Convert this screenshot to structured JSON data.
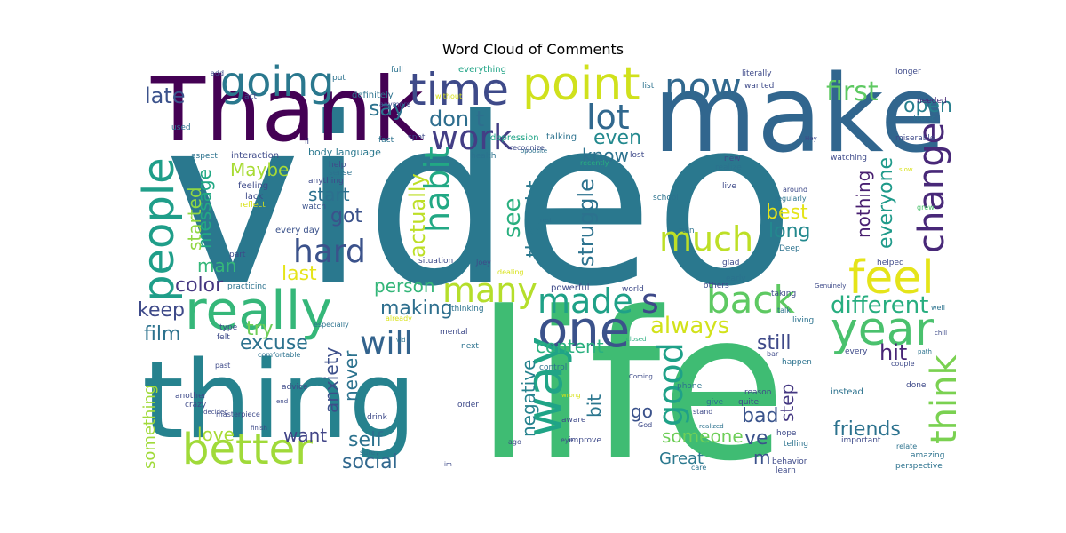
{
  "chart_data": {
    "type": "wordcloud",
    "title": "Word Cloud of Comments",
    "words": [
      {
        "text": "video",
        "weight": 260,
        "color": "#2a788e"
      },
      {
        "text": "life",
        "weight": 230,
        "color": "#3fbc73"
      },
      {
        "text": "make",
        "weight": 120,
        "color": "#31668e"
      },
      {
        "text": "thing",
        "weight": 120,
        "color": "#26828e"
      },
      {
        "text": "Thank",
        "weight": 100,
        "color": "#440154"
      },
      {
        "text": "better",
        "weight": 48,
        "color": "#a0da39"
      },
      {
        "text": "really",
        "weight": 60,
        "color": "#35b779"
      },
      {
        "text": "people",
        "weight": 48,
        "color": "#1f9e89"
      },
      {
        "text": "point",
        "weight": 52,
        "color": "#d0e11c"
      },
      {
        "text": "time",
        "weight": 50,
        "color": "#3e4a89"
      },
      {
        "text": "going",
        "weight": 46,
        "color": "#2a788e"
      },
      {
        "text": "now",
        "weight": 42,
        "color": "#31688e"
      },
      {
        "text": "one",
        "weight": 56,
        "color": "#3b528b"
      },
      {
        "text": "way",
        "weight": 56,
        "color": "#20a486"
      },
      {
        "text": "year",
        "weight": 52,
        "color": "#4ac16d"
      },
      {
        "text": "feel",
        "weight": 52,
        "color": "#e5e419"
      },
      {
        "text": "change",
        "weight": 40,
        "color": "#482878"
      },
      {
        "text": "think",
        "weight": 40,
        "color": "#7ad151"
      },
      {
        "text": "back",
        "weight": 42,
        "color": "#5ec962"
      },
      {
        "text": "made",
        "weight": 38,
        "color": "#1fa187"
      },
      {
        "text": "s",
        "weight": 38,
        "color": "#3e4989"
      },
      {
        "text": "many",
        "weight": 38,
        "color": "#b5de2b"
      },
      {
        "text": "much",
        "weight": 38,
        "color": "#bddf26"
      },
      {
        "text": "hard",
        "weight": 36,
        "color": "#3b528b"
      },
      {
        "text": "work",
        "weight": 38,
        "color": "#433e85"
      },
      {
        "text": "will",
        "weight": 36,
        "color": "#33638d"
      },
      {
        "text": "lot",
        "weight": 38,
        "color": "#31688e"
      },
      {
        "text": "habit",
        "weight": 38,
        "color": "#22a884"
      },
      {
        "text": "good",
        "weight": 38,
        "color": "#1fa188"
      },
      {
        "text": "first",
        "weight": 30,
        "color": "#5ec962"
      },
      {
        "text": "open",
        "weight": 22,
        "color": "#277f8e"
      },
      {
        "text": "late",
        "weight": 24,
        "color": "#3b528b"
      },
      {
        "text": "say",
        "weight": 24,
        "color": "#2c728e"
      },
      {
        "text": "don t",
        "weight": 24,
        "color": "#2e6e8e"
      },
      {
        "text": "even",
        "weight": 22,
        "color": "#23898e"
      },
      {
        "text": "know",
        "weight": 20,
        "color": "#2c728e"
      },
      {
        "text": "Maybe",
        "weight": 20,
        "color": "#a8db34"
      },
      {
        "text": "message",
        "weight": 20,
        "color": "#22a884"
      },
      {
        "text": "started",
        "weight": 20,
        "color": "#90d743"
      },
      {
        "text": "start",
        "weight": 20,
        "color": "#2d708e"
      },
      {
        "text": "got",
        "weight": 22,
        "color": "#3b528b"
      },
      {
        "text": "see",
        "weight": 26,
        "color": "#29af7f"
      },
      {
        "text": "actually",
        "weight": 24,
        "color": "#bddf26"
      },
      {
        "text": "thought",
        "weight": 22,
        "color": "#2a788e"
      },
      {
        "text": "struggle",
        "weight": 24,
        "color": "#2c728e"
      },
      {
        "text": "best",
        "weight": 22,
        "color": "#e5e419"
      },
      {
        "text": "long",
        "weight": 22,
        "color": "#23898e"
      },
      {
        "text": "nothing",
        "weight": 20,
        "color": "#481f70"
      },
      {
        "text": "everyone",
        "weight": 22,
        "color": "#1f9a8a"
      },
      {
        "text": "man",
        "weight": 20,
        "color": "#35b779"
      },
      {
        "text": "last",
        "weight": 22,
        "color": "#e5e419"
      },
      {
        "text": "color",
        "weight": 22,
        "color": "#453781"
      },
      {
        "text": "person",
        "weight": 20,
        "color": "#34b679"
      },
      {
        "text": "keep",
        "weight": 22,
        "color": "#3e4a89"
      },
      {
        "text": "try",
        "weight": 22,
        "color": "#6ece58"
      },
      {
        "text": "making",
        "weight": 22,
        "color": "#2e6f8e"
      },
      {
        "text": "always",
        "weight": 26,
        "color": "#d2e21b"
      },
      {
        "text": "different",
        "weight": 26,
        "color": "#28ae80"
      },
      {
        "text": "film",
        "weight": 22,
        "color": "#2c728e"
      },
      {
        "text": "excuse",
        "weight": 22,
        "color": "#2c728e"
      },
      {
        "text": "content",
        "weight": 20,
        "color": "#2ab07f"
      },
      {
        "text": "still",
        "weight": 22,
        "color": "#3e4989"
      },
      {
        "text": "hit",
        "weight": 24,
        "color": "#482576"
      },
      {
        "text": "anxiety",
        "weight": 20,
        "color": "#3c4f8a"
      },
      {
        "text": "never",
        "weight": 20,
        "color": "#2c728e"
      },
      {
        "text": "negative",
        "weight": 20,
        "color": "#26828e"
      },
      {
        "text": "bit",
        "weight": 20,
        "color": "#2a768e"
      },
      {
        "text": "step",
        "weight": 20,
        "color": "#453882"
      },
      {
        "text": "bad",
        "weight": 22,
        "color": "#3a548c"
      },
      {
        "text": "go",
        "weight": 20,
        "color": "#3b528b"
      },
      {
        "text": "friends",
        "weight": 22,
        "color": "#2c728e"
      },
      {
        "text": "love",
        "weight": 20,
        "color": "#a8db34"
      },
      {
        "text": "want",
        "weight": 20,
        "color": "#414487"
      },
      {
        "text": "self",
        "weight": 22,
        "color": "#2c728e"
      },
      {
        "text": "someone",
        "weight": 20,
        "color": "#6ece58"
      },
      {
        "text": "ve",
        "weight": 22,
        "color": "#3b528b"
      },
      {
        "text": "something",
        "weight": 18,
        "color": "#a0da39"
      },
      {
        "text": "social",
        "weight": 22,
        "color": "#31688e"
      },
      {
        "text": "Great",
        "weight": 18,
        "color": "#2a788e"
      },
      {
        "text": "m",
        "weight": 20,
        "color": "#3b528b"
      },
      {
        "text": "body language",
        "weight": 11,
        "color": "#2a788e"
      },
      {
        "text": "interaction",
        "weight": 10,
        "color": "#3e4a89"
      },
      {
        "text": "feeling",
        "weight": 10,
        "color": "#3e4a89"
      },
      {
        "text": "lack",
        "weight": 10,
        "color": "#3e4a89"
      },
      {
        "text": "reflect",
        "weight": 9,
        "color": "#d8e219"
      },
      {
        "text": "watch",
        "weight": 9,
        "color": "#3b528b"
      },
      {
        "text": "every day",
        "weight": 10,
        "color": "#3b528b"
      },
      {
        "text": "part",
        "weight": 9,
        "color": "#3e4a89"
      },
      {
        "text": "practicing",
        "weight": 9,
        "color": "#2c728e"
      },
      {
        "text": "aspect",
        "weight": 9,
        "color": "#2c728e"
      },
      {
        "text": "anything",
        "weight": 9,
        "color": "#3e4a89"
      },
      {
        "text": "help",
        "weight": 9,
        "color": "#3e4a89"
      },
      {
        "text": "ll",
        "weight": 9,
        "color": "#3e4a89"
      },
      {
        "text": "sense",
        "weight": 9,
        "color": "#2c728e"
      },
      {
        "text": "used",
        "weight": 9,
        "color": "#2c728e"
      },
      {
        "text": "add",
        "weight": 8,
        "color": "#3e4a89"
      },
      {
        "text": "act",
        "weight": 9,
        "color": "#3e4a89"
      },
      {
        "text": "put",
        "weight": 9,
        "color": "#2c728e"
      },
      {
        "text": "full",
        "weight": 9,
        "color": "#2c728e"
      },
      {
        "text": "everything",
        "weight": 10,
        "color": "#20a486"
      },
      {
        "text": "definitely",
        "weight": 10,
        "color": "#2c728e"
      },
      {
        "text": "anymore",
        "weight": 8,
        "color": "#3e4a89"
      },
      {
        "text": "without",
        "weight": 8,
        "color": "#d8e219"
      },
      {
        "text": "literally",
        "weight": 9,
        "color": "#3e4a89"
      },
      {
        "text": "wanted",
        "weight": 9,
        "color": "#3e4a89"
      },
      {
        "text": "list",
        "weight": 9,
        "color": "#2c728e"
      },
      {
        "text": "longer",
        "weight": 9,
        "color": "#3e4a89"
      },
      {
        "text": "needed",
        "weight": 9,
        "color": "#482878"
      },
      {
        "text": "found",
        "weight": 9,
        "color": "#2c728e"
      },
      {
        "text": "depression",
        "weight": 10,
        "color": "#20a486"
      },
      {
        "text": "fact",
        "weight": 9,
        "color": "#2c728e"
      },
      {
        "text": "spot",
        "weight": 9,
        "color": "#3e4a89"
      },
      {
        "text": "talking",
        "weight": 10,
        "color": "#2c728e"
      },
      {
        "text": "Hey",
        "weight": 7,
        "color": "#3e4a89"
      },
      {
        "text": "miserable",
        "weight": 9,
        "color": "#3e4a89"
      },
      {
        "text": "health",
        "weight": 9,
        "color": "#2c728e"
      },
      {
        "text": "opposite",
        "weight": 7,
        "color": "#2c728e"
      },
      {
        "text": "recently",
        "weight": 8,
        "color": "#29af7f"
      },
      {
        "text": "lost",
        "weight": 9,
        "color": "#3e4a89"
      },
      {
        "text": "new",
        "weight": 9,
        "color": "#3e4a89"
      },
      {
        "text": "realize",
        "weight": 9,
        "color": "#2c728e"
      },
      {
        "text": "watching",
        "weight": 9,
        "color": "#3e4a89"
      },
      {
        "text": "slow",
        "weight": 7,
        "color": "#d8e219"
      },
      {
        "text": "school",
        "weight": 9,
        "color": "#2c728e"
      },
      {
        "text": "live",
        "weight": 9,
        "color": "#3e4a89"
      },
      {
        "text": "around",
        "weight": 8,
        "color": "#3e4a89"
      },
      {
        "text": "regularly",
        "weight": 8,
        "color": "#2c728e"
      },
      {
        "text": "rest",
        "weight": 7,
        "color": "#2c728e"
      },
      {
        "text": "grew",
        "weight": 8,
        "color": "#4ac16d"
      },
      {
        "text": "ruin",
        "weight": 9,
        "color": "#2c728e"
      },
      {
        "text": "Deep",
        "weight": 9,
        "color": "#2c728e"
      },
      {
        "text": "situation",
        "weight": 9,
        "color": "#3e4a89"
      },
      {
        "text": "Joey",
        "weight": 8,
        "color": "#3e4a89"
      },
      {
        "text": "dealing",
        "weight": 8,
        "color": "#d8e219"
      },
      {
        "text": "glad",
        "weight": 9,
        "color": "#3e4a89"
      },
      {
        "text": "helped",
        "weight": 9,
        "color": "#3e4a89"
      },
      {
        "text": "early",
        "weight": 9,
        "color": "#2c728e"
      },
      {
        "text": "others",
        "weight": 9,
        "color": "#3e4a89"
      },
      {
        "text": "world",
        "weight": 9,
        "color": "#3e4a89"
      },
      {
        "text": "powerful",
        "weight": 10,
        "color": "#3e4a89"
      },
      {
        "text": "taking",
        "weight": 9,
        "color": "#3e4a89"
      },
      {
        "text": "Genuinely",
        "weight": 7,
        "color": "#3e4a89"
      },
      {
        "text": "talk",
        "weight": 8,
        "color": "#2c728e"
      },
      {
        "text": "well",
        "weight": 8,
        "color": "#2c728e"
      },
      {
        "text": "living",
        "weight": 9,
        "color": "#2c728e"
      },
      {
        "text": "thinking",
        "weight": 9,
        "color": "#2c728e"
      },
      {
        "text": "already",
        "weight": 8,
        "color": "#d8e219"
      },
      {
        "text": "especially",
        "weight": 8,
        "color": "#2c728e"
      },
      {
        "text": "type",
        "weight": 9,
        "color": "#3e4a89"
      },
      {
        "text": "felt",
        "weight": 9,
        "color": "#3e4a89"
      },
      {
        "text": "comfortable",
        "weight": 8,
        "color": "#2c728e"
      },
      {
        "text": "past",
        "weight": 8,
        "color": "#3e4a89"
      },
      {
        "text": "mental",
        "weight": 9,
        "color": "#3e4a89"
      },
      {
        "text": "vid",
        "weight": 7,
        "color": "#2c728e"
      },
      {
        "text": "next",
        "weight": 9,
        "color": "#2c728e"
      },
      {
        "text": "closed",
        "weight": 7,
        "color": "#29af7f"
      },
      {
        "text": "chill",
        "weight": 7,
        "color": "#3e4a89"
      },
      {
        "text": "bar",
        "weight": 8,
        "color": "#3e4a89"
      },
      {
        "text": "happen",
        "weight": 9,
        "color": "#2c728e"
      },
      {
        "text": "every",
        "weight": 9,
        "color": "#3e4a89"
      },
      {
        "text": "path",
        "weight": 7,
        "color": "#2c728e"
      },
      {
        "text": "couple",
        "weight": 8,
        "color": "#3e4a89"
      },
      {
        "text": "control",
        "weight": 9,
        "color": "#2c728e"
      },
      {
        "text": "Coming",
        "weight": 7,
        "color": "#3e4a89"
      },
      {
        "text": "phone",
        "weight": 9,
        "color": "#2c728e"
      },
      {
        "text": "reason",
        "weight": 9,
        "color": "#3e4a89"
      },
      {
        "text": "instead",
        "weight": 10,
        "color": "#2c728e"
      },
      {
        "text": "done",
        "weight": 9,
        "color": "#3e4a89"
      },
      {
        "text": "decided",
        "weight": 7,
        "color": "#3e4a89"
      },
      {
        "text": "advice",
        "weight": 9,
        "color": "#3e4a89"
      },
      {
        "text": "another",
        "weight": 9,
        "color": "#3e4a89"
      },
      {
        "text": "crazy",
        "weight": 9,
        "color": "#3e4a89"
      },
      {
        "text": "masterpiece",
        "weight": 8,
        "color": "#3e4a89"
      },
      {
        "text": "end",
        "weight": 7,
        "color": "#3e4a89"
      },
      {
        "text": "order",
        "weight": 9,
        "color": "#3e4a89"
      },
      {
        "text": "wrong",
        "weight": 7,
        "color": "#d8e219"
      },
      {
        "text": "give",
        "weight": 9,
        "color": "#2c728e"
      },
      {
        "text": "quite",
        "weight": 9,
        "color": "#3e4a89"
      },
      {
        "text": "stand",
        "weight": 8,
        "color": "#3e4a89"
      },
      {
        "text": "God",
        "weight": 8,
        "color": "#3e4a89"
      },
      {
        "text": "hope",
        "weight": 9,
        "color": "#3e4a89"
      },
      {
        "text": "telling",
        "weight": 9,
        "color": "#2c728e"
      },
      {
        "text": "important",
        "weight": 9,
        "color": "#3e4a89"
      },
      {
        "text": "relate",
        "weight": 8,
        "color": "#2c728e"
      },
      {
        "text": "amazing",
        "weight": 9,
        "color": "#2c728e"
      },
      {
        "text": "perspective",
        "weight": 9,
        "color": "#2c728e"
      },
      {
        "text": "aware",
        "weight": 9,
        "color": "#3e4a89"
      },
      {
        "text": "eye",
        "weight": 8,
        "color": "#3e4a89"
      },
      {
        "text": "improve",
        "weight": 9,
        "color": "#3e4a89"
      },
      {
        "text": "realized",
        "weight": 7,
        "color": "#2c728e"
      },
      {
        "text": "behavior",
        "weight": 9,
        "color": "#3e4a89"
      },
      {
        "text": "learn",
        "weight": 9,
        "color": "#3e4a89"
      },
      {
        "text": "care",
        "weight": 8,
        "color": "#2c728e"
      },
      {
        "text": "ago",
        "weight": 8,
        "color": "#3e4a89"
      },
      {
        "text": "drink",
        "weight": 9,
        "color": "#3e4a89"
      },
      {
        "text": "finish",
        "weight": 7,
        "color": "#3e4a89"
      },
      {
        "text": "sure",
        "weight": 8,
        "color": "#2c728e"
      },
      {
        "text": "im",
        "weight": 7,
        "color": "#3e4a89"
      },
      {
        "text": "recognize",
        "weight": 8,
        "color": "#3e4a89"
      }
    ]
  }
}
